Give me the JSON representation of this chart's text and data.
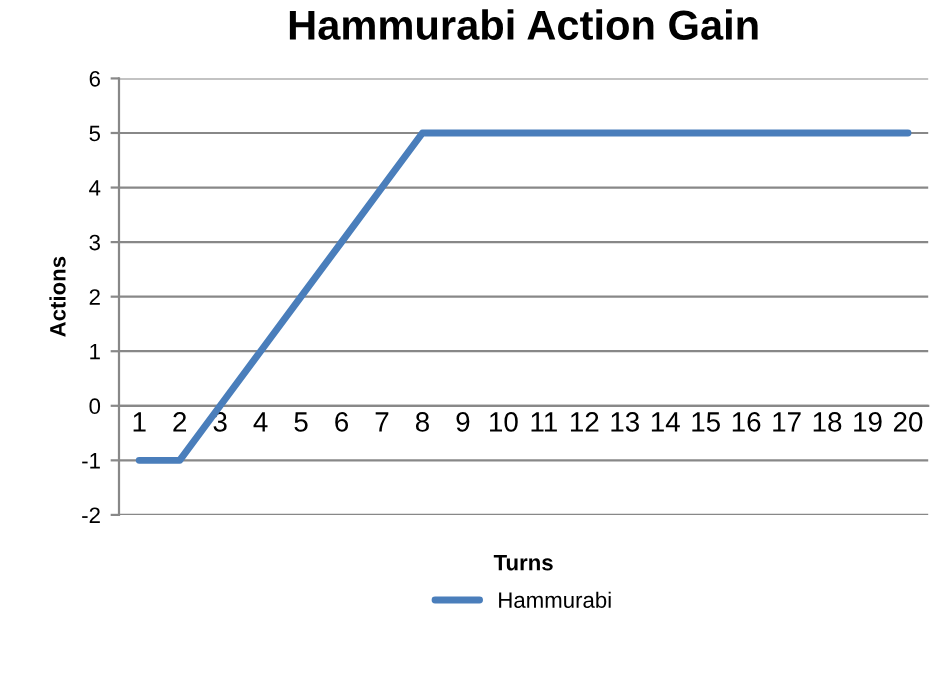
{
  "chart_data": {
    "type": "line",
    "title": "Hammurabi Action Gain",
    "xlabel": "Turns",
    "ylabel": "Actions",
    "categories": [
      "1",
      "2",
      "3",
      "4",
      "5",
      "6",
      "7",
      "8",
      "9",
      "10",
      "11",
      "12",
      "13",
      "14",
      "15",
      "16",
      "17",
      "18",
      "19",
      "20"
    ],
    "series": [
      {
        "name": "Hammurabi",
        "color": "#4a7ebb",
        "values": [
          -1,
          -1,
          0,
          1,
          2,
          3,
          4,
          5,
          5,
          5,
          5,
          5,
          5,
          5,
          5,
          5,
          5,
          5,
          5,
          5
        ]
      }
    ],
    "ylim": [
      -2,
      6
    ],
    "yticks": [
      -2,
      -1,
      0,
      1,
      2,
      3,
      4,
      5,
      6
    ],
    "grid": "y",
    "legend": "bottom",
    "marker": "none",
    "line_style": "solid"
  }
}
